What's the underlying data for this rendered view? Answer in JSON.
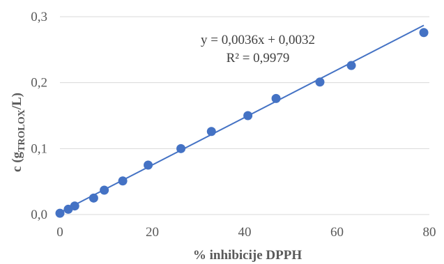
{
  "chart_data": {
    "type": "scatter",
    "title": "",
    "xlabel": "% inhibicije DPPH",
    "ylabel_parts": [
      "c (g",
      "TROLOX",
      "/L)"
    ],
    "xlim": [
      0,
      80
    ],
    "ylim": [
      0,
      0.3
    ],
    "x_ticks": [
      0,
      20,
      40,
      60,
      80
    ],
    "x_tick_labels": [
      "0",
      "20",
      "40",
      "60",
      "80"
    ],
    "y_ticks": [
      0,
      0.1,
      0.2,
      0.3
    ],
    "y_tick_labels": [
      "0,0",
      "0,1",
      "0,2",
      "0,3"
    ],
    "grid": "horizontal",
    "legend": "none",
    "series": [
      {
        "points": [
          {
            "x": 0.0,
            "y": 0.002
          },
          {
            "x": 1.8,
            "y": 0.008
          },
          {
            "x": 3.2,
            "y": 0.013
          },
          {
            "x": 7.3,
            "y": 0.025
          },
          {
            "x": 9.6,
            "y": 0.037
          },
          {
            "x": 13.6,
            "y": 0.051
          },
          {
            "x": 19.1,
            "y": 0.075
          },
          {
            "x": 26.2,
            "y": 0.1
          },
          {
            "x": 32.8,
            "y": 0.126
          },
          {
            "x": 40.7,
            "y": 0.15
          },
          {
            "x": 46.8,
            "y": 0.176
          },
          {
            "x": 56.3,
            "y": 0.201
          },
          {
            "x": 63.1,
            "y": 0.226
          },
          {
            "x": 78.8,
            "y": 0.276
          }
        ]
      }
    ],
    "trendline": {
      "slope": 0.0036,
      "intercept": 0.0032,
      "x_range": [
        0,
        78.8
      ]
    },
    "annotations": {
      "equation": "y = 0,0036x + 0,0032",
      "r_squared": "R² = 0,9979"
    },
    "colors": {
      "marker": "#4472C4",
      "line": "#4472C4",
      "grid": "#D9D9D9",
      "text": "#595959"
    }
  }
}
